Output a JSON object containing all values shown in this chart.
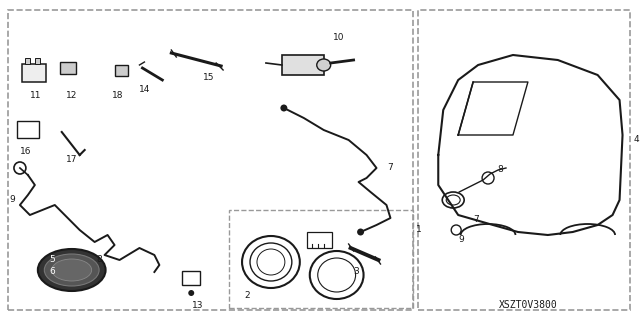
{
  "bg_color": "#ffffff",
  "line_color": "#1a1a1a",
  "dashed_color": "#999999",
  "diagram_code": "XSZT0V3800",
  "figsize": [
    6.4,
    3.19
  ],
  "dpi": 100
}
